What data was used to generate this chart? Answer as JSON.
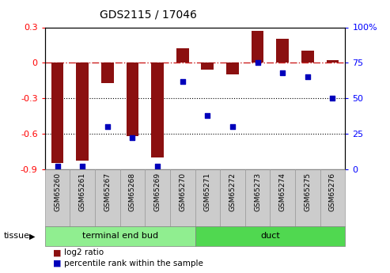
{
  "title": "GDS2115 / 17046",
  "samples": [
    "GSM65260",
    "GSM65261",
    "GSM65267",
    "GSM65268",
    "GSM65269",
    "GSM65270",
    "GSM65271",
    "GSM65272",
    "GSM65273",
    "GSM65274",
    "GSM65275",
    "GSM65276"
  ],
  "log2_ratio": [
    -0.85,
    -0.83,
    -0.17,
    -0.62,
    -0.8,
    0.12,
    -0.06,
    -0.1,
    0.27,
    0.2,
    0.1,
    0.02
  ],
  "percentile_rank": [
    2,
    2,
    30,
    22,
    2,
    62,
    38,
    30,
    75,
    68,
    65,
    50
  ],
  "tissue_groups": [
    {
      "label": "terminal end bud",
      "start": 0,
      "end": 6,
      "color": "#90EE90"
    },
    {
      "label": "duct",
      "start": 6,
      "end": 12,
      "color": "#50D850"
    }
  ],
  "ylim_left": [
    -0.9,
    0.3
  ],
  "ylim_right": [
    0,
    100
  ],
  "yticks_left": [
    -0.9,
    -0.6,
    -0.3,
    0.0,
    0.3
  ],
  "yticks_right": [
    0,
    25,
    50,
    75,
    100
  ],
  "ytick_labels_left": [
    "-0.9",
    "-0.6",
    "-0.3",
    "0",
    "0.3"
  ],
  "ytick_labels_right": [
    "0",
    "25",
    "50",
    "75",
    "100%"
  ],
  "bar_color": "#8B1010",
  "dot_color": "#0000BB",
  "grid_color": "#000000",
  "zero_line_color": "#CC2222",
  "bg_color": "#ffffff",
  "plot_bg": "#ffffff",
  "legend_items": [
    {
      "label": "log2 ratio",
      "color": "#8B1010"
    },
    {
      "label": "percentile rank within the sample",
      "color": "#0000BB"
    }
  ],
  "tissue_label": "tissue",
  "bar_width": 0.5,
  "sample_box_color": "#CCCCCC",
  "sample_box_edge_color": "#999999"
}
